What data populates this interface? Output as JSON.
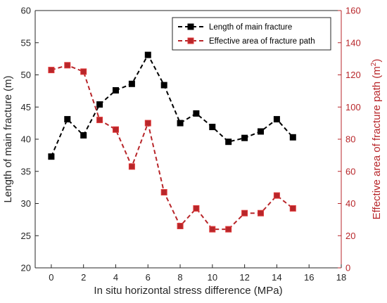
{
  "chart_data": {
    "type": "line",
    "xlabel": "In situ horizontal stress difference (MPa)",
    "ylabel_left": "Length of main fracture (m)",
    "ylabel_right": "Effective area of fracture path (m",
    "ylabel_right_superscript": "2",
    "ylabel_right_suffix": ")",
    "xlim": [
      -1,
      18
    ],
    "xticks": [
      0,
      2,
      4,
      6,
      8,
      10,
      12,
      14,
      16,
      18
    ],
    "ylim_left": [
      20,
      60
    ],
    "yticks_left": [
      20,
      25,
      30,
      35,
      40,
      45,
      50,
      55,
      60
    ],
    "ylim_right": [
      0,
      160
    ],
    "yticks_right": [
      0,
      20,
      40,
      60,
      80,
      100,
      120,
      140,
      160
    ],
    "grid": false,
    "legend_position": "top-right",
    "series": [
      {
        "name": "Length of main fracture",
        "axis": "left",
        "color": "#000000",
        "x": [
          0,
          1,
          2,
          3,
          4,
          5,
          6,
          7,
          8,
          9,
          10,
          11,
          12,
          13,
          14,
          15
        ],
        "values": [
          37.3,
          43.1,
          40.6,
          45.4,
          47.6,
          48.6,
          53.1,
          48.4,
          42.5,
          44.0,
          41.9,
          39.6,
          40.2,
          41.2,
          43.1,
          40.3
        ]
      },
      {
        "name": "Effective area of fracture path",
        "axis": "right",
        "color": "#b8262a",
        "x": [
          0,
          1,
          2,
          3,
          4,
          5,
          6,
          7,
          8,
          9,
          10,
          11,
          12,
          13,
          14,
          15
        ],
        "values": [
          123,
          126,
          122,
          92,
          86,
          63,
          90,
          47,
          26,
          37,
          24,
          24,
          34,
          34,
          45,
          37
        ]
      }
    ]
  }
}
